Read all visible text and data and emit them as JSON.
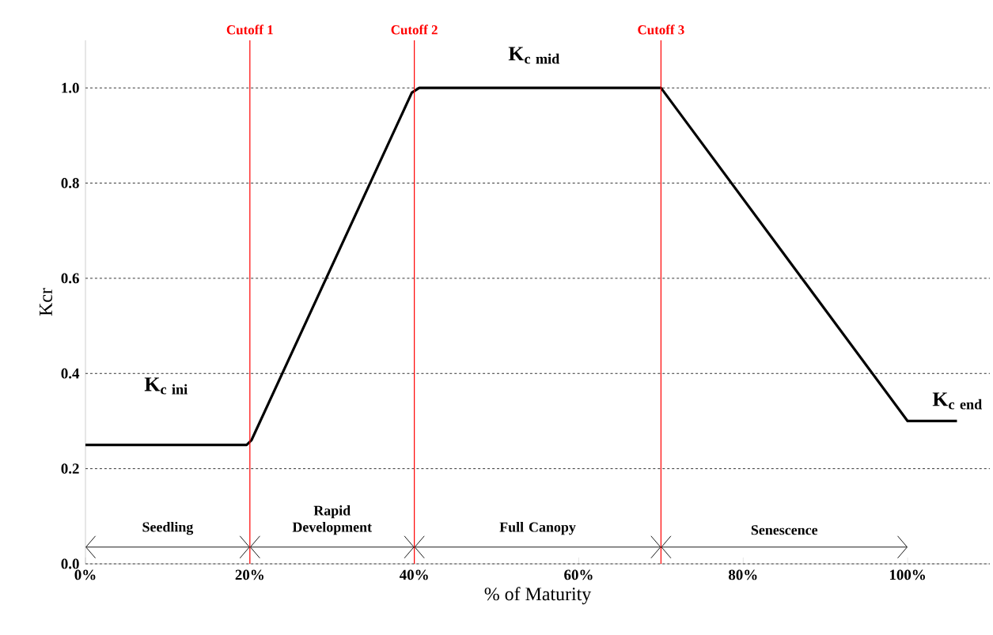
{
  "chart_data": {
    "type": "line",
    "xlabel": "% of Maturity",
    "ylabel": "Kcr",
    "x": [
      0,
      19.6,
      20.2,
      39.7,
      40.6,
      70,
      100,
      106
    ],
    "series": [
      {
        "color": "#000000",
        "values": [
          0.25,
          0.25,
          0.26,
          0.99,
          1.0,
          1.0,
          0.3,
          0.3
        ]
      }
    ],
    "xlim": [
      0,
      110
    ],
    "ylim": [
      0,
      1.1
    ],
    "xticks": [
      {
        "value": 0,
        "label": "0%"
      },
      {
        "value": 20,
        "label": "20%"
      },
      {
        "value": 40,
        "label": "40%"
      },
      {
        "value": 60,
        "label": "60%"
      },
      {
        "value": 80,
        "label": "80%"
      },
      {
        "value": 100,
        "label": "100%"
      }
    ],
    "yticks": [
      {
        "value": 0,
        "label": "0.0"
      },
      {
        "value": 0.2,
        "label": "0.2"
      },
      {
        "value": 0.4,
        "label": "0.4"
      },
      {
        "value": 0.6,
        "label": "0.6"
      },
      {
        "value": 0.8,
        "label": "0.8"
      },
      {
        "value": 1.0,
        "label": "1.0"
      }
    ],
    "grid": "y",
    "ref_lines": [
      {
        "axis": "x",
        "value": 20,
        "label": "Cutoff 1",
        "color": "#ff0000"
      },
      {
        "axis": "x",
        "value": 40,
        "label": "Cutoff 2",
        "color": "#ff0000"
      },
      {
        "axis": "x",
        "value": 70,
        "label": "Cutoff 3",
        "color": "#ff0000"
      }
    ],
    "annotations": [
      "\\mathbf{K}_{\\mathbf{c\\ ini}}",
      "\\mathbf{K}_{\\mathbf{c\\ mid}}",
      "\\mathbf{K}_{\\mathbf{c\\ end}}",
      "Seedling",
      "Rapid Development",
      "Full Canopy",
      "Senescence"
    ]
  }
}
